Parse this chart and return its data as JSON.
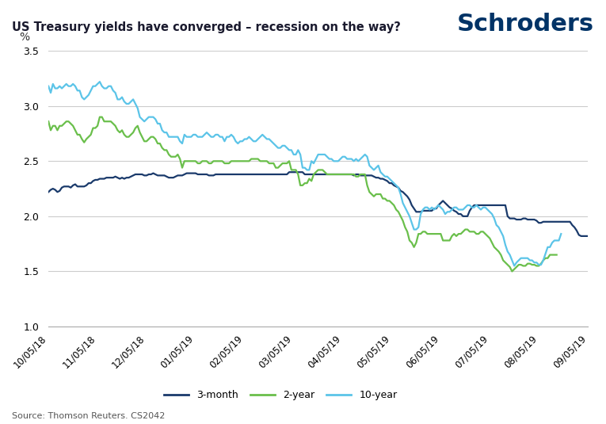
{
  "title": "US Treasury yields have converged – recession on the way?",
  "branding": "Schroders",
  "ylabel": "%",
  "source": "Source: Thomson Reuters. CS2042",
  "ylim": [
    1.0,
    3.5
  ],
  "yticks": [
    1.0,
    1.5,
    2.0,
    2.5,
    3.0,
    3.5
  ],
  "background_color": "#ffffff",
  "grid_color": "#cccccc",
  "series_3month_color": "#1a3a6b",
  "series_2year_color": "#6abf4b",
  "series_10year_color": "#5bc4e8",
  "linewidth": 1.6,
  "xtick_labels": [
    "10/05/18",
    "11/05/18",
    "12/05/18",
    "01/05/19",
    "02/05/19",
    "03/05/19",
    "04/05/19",
    "05/05/19",
    "06/05/19",
    "07/05/19",
    "08/05/19",
    "09/05/19"
  ],
  "series_3month": [
    2.22,
    2.24,
    2.25,
    2.24,
    2.22,
    2.23,
    2.26,
    2.27,
    2.27,
    2.27,
    2.26,
    2.28,
    2.29,
    2.27,
    2.27,
    2.27,
    2.27,
    2.28,
    2.3,
    2.3,
    2.32,
    2.33,
    2.33,
    2.34,
    2.34,
    2.34,
    2.35,
    2.35,
    2.35,
    2.35,
    2.36,
    2.35,
    2.34,
    2.35,
    2.34,
    2.35,
    2.35,
    2.36,
    2.37,
    2.38,
    2.38,
    2.38,
    2.38,
    2.37,
    2.37,
    2.38,
    2.38,
    2.39,
    2.38,
    2.37,
    2.37,
    2.37,
    2.37,
    2.36,
    2.35,
    2.35,
    2.35,
    2.36,
    2.37,
    2.37,
    2.37,
    2.38,
    2.39,
    2.39,
    2.39,
    2.39,
    2.39,
    2.38,
    2.38,
    2.38,
    2.38,
    2.38,
    2.37,
    2.37,
    2.37,
    2.38,
    2.38,
    2.38,
    2.38,
    2.38,
    2.38,
    2.38,
    2.38,
    2.38,
    2.38,
    2.38,
    2.38,
    2.38,
    2.38,
    2.38,
    2.38,
    2.38,
    2.38,
    2.38,
    2.38,
    2.38,
    2.38,
    2.38,
    2.38,
    2.38,
    2.38,
    2.38,
    2.38,
    2.38,
    2.38,
    2.38,
    2.38,
    2.38,
    2.4,
    2.4,
    2.4,
    2.4,
    2.4,
    2.4,
    2.4,
    2.38,
    2.38,
    2.38,
    2.38,
    2.38,
    2.38,
    2.38,
    2.38,
    2.38,
    2.38,
    2.38,
    2.38,
    2.38,
    2.38,
    2.38,
    2.38,
    2.38,
    2.38,
    2.38,
    2.38,
    2.38,
    2.38,
    2.37,
    2.38,
    2.38,
    2.37,
    2.37,
    2.37,
    2.37,
    2.37,
    2.37,
    2.36,
    2.35,
    2.35,
    2.34,
    2.34,
    2.33,
    2.32,
    2.3,
    2.3,
    2.28,
    2.27,
    2.26,
    2.23,
    2.22,
    2.2,
    2.18,
    2.15,
    2.1,
    2.07,
    2.04,
    2.04,
    2.04,
    2.05,
    2.05,
    2.05,
    2.05,
    2.05,
    2.07,
    2.07,
    2.1,
    2.12,
    2.14,
    2.12,
    2.1,
    2.08,
    2.07,
    2.05,
    2.04,
    2.02,
    2.02,
    2.0,
    2.0,
    2.0,
    2.05,
    2.08,
    2.1,
    2.1,
    2.1,
    2.1,
    2.1,
    2.1,
    2.1,
    2.1,
    2.1,
    2.1,
    2.1,
    2.1,
    2.1,
    2.1,
    2.1,
    2.0,
    1.98,
    1.98,
    1.98,
    1.97,
    1.97,
    1.97,
    1.98,
    1.98,
    1.97,
    1.97,
    1.97,
    1.97,
    1.96,
    1.94,
    1.94,
    1.95,
    1.95,
    1.95,
    1.95,
    1.95,
    1.95,
    1.95,
    1.95,
    1.95,
    1.95,
    1.95,
    1.95,
    1.95,
    1.92,
    1.9,
    1.87,
    1.83,
    1.82,
    1.82,
    1.82,
    1.82
  ],
  "series_2year": [
    2.86,
    2.78,
    2.82,
    2.82,
    2.78,
    2.82,
    2.82,
    2.84,
    2.86,
    2.86,
    2.84,
    2.82,
    2.78,
    2.74,
    2.74,
    2.7,
    2.67,
    2.7,
    2.72,
    2.74,
    2.8,
    2.8,
    2.82,
    2.9,
    2.9,
    2.86,
    2.86,
    2.86,
    2.86,
    2.84,
    2.82,
    2.78,
    2.76,
    2.78,
    2.74,
    2.72,
    2.72,
    2.74,
    2.76,
    2.8,
    2.82,
    2.76,
    2.72,
    2.68,
    2.68,
    2.7,
    2.72,
    2.72,
    2.7,
    2.66,
    2.66,
    2.62,
    2.6,
    2.6,
    2.56,
    2.54,
    2.54,
    2.54,
    2.56,
    2.52,
    2.44,
    2.5,
    2.5,
    2.5,
    2.5,
    2.5,
    2.5,
    2.48,
    2.48,
    2.5,
    2.5,
    2.5,
    2.48,
    2.48,
    2.5,
    2.5,
    2.5,
    2.5,
    2.5,
    2.48,
    2.48,
    2.48,
    2.5,
    2.5,
    2.5,
    2.5,
    2.5,
    2.5,
    2.5,
    2.5,
    2.5,
    2.52,
    2.52,
    2.52,
    2.52,
    2.5,
    2.5,
    2.5,
    2.5,
    2.48,
    2.48,
    2.48,
    2.44,
    2.44,
    2.46,
    2.48,
    2.48,
    2.48,
    2.5,
    2.42,
    2.42,
    2.42,
    2.38,
    2.28,
    2.28,
    2.3,
    2.3,
    2.34,
    2.32,
    2.38,
    2.4,
    2.42,
    2.42,
    2.42,
    2.4,
    2.38,
    2.38,
    2.38,
    2.38,
    2.38,
    2.38,
    2.38,
    2.38,
    2.38,
    2.38,
    2.38,
    2.38,
    2.38,
    2.36,
    2.36,
    2.38,
    2.38,
    2.38,
    2.28,
    2.22,
    2.2,
    2.18,
    2.2,
    2.2,
    2.2,
    2.16,
    2.16,
    2.14,
    2.14,
    2.12,
    2.1,
    2.06,
    2.04,
    2.0,
    1.96,
    1.9,
    1.86,
    1.78,
    1.76,
    1.72,
    1.76,
    1.84,
    1.84,
    1.86,
    1.86,
    1.84,
    1.84,
    1.84,
    1.84,
    1.84,
    1.84,
    1.84,
    1.78,
    1.78,
    1.78,
    1.78,
    1.82,
    1.84,
    1.82,
    1.84,
    1.84,
    1.86,
    1.88,
    1.88,
    1.86,
    1.86,
    1.86,
    1.84,
    1.84,
    1.86,
    1.86,
    1.84,
    1.82,
    1.8,
    1.76,
    1.72,
    1.7,
    1.68,
    1.65,
    1.6,
    1.58,
    1.56,
    1.54,
    1.5,
    1.52,
    1.54,
    1.56,
    1.56,
    1.55,
    1.55,
    1.57,
    1.57,
    1.56,
    1.56,
    1.55,
    1.55,
    1.57,
    1.6,
    1.62,
    1.62,
    1.65,
    1.65,
    1.65,
    1.65
  ],
  "series_10year": [
    3.18,
    3.12,
    3.2,
    3.16,
    3.16,
    3.18,
    3.16,
    3.18,
    3.2,
    3.18,
    3.18,
    3.2,
    3.18,
    3.14,
    3.14,
    3.08,
    3.06,
    3.08,
    3.1,
    3.14,
    3.18,
    3.18,
    3.2,
    3.22,
    3.18,
    3.16,
    3.16,
    3.18,
    3.18,
    3.14,
    3.12,
    3.06,
    3.06,
    3.08,
    3.04,
    3.02,
    3.02,
    3.04,
    3.06,
    3.02,
    2.98,
    2.9,
    2.88,
    2.86,
    2.88,
    2.9,
    2.9,
    2.9,
    2.88,
    2.84,
    2.84,
    2.78,
    2.76,
    2.76,
    2.72,
    2.72,
    2.72,
    2.72,
    2.72,
    2.68,
    2.66,
    2.74,
    2.72,
    2.72,
    2.72,
    2.74,
    2.74,
    2.72,
    2.72,
    2.72,
    2.74,
    2.76,
    2.74,
    2.72,
    2.72,
    2.74,
    2.74,
    2.72,
    2.72,
    2.68,
    2.72,
    2.72,
    2.74,
    2.72,
    2.68,
    2.66,
    2.68,
    2.68,
    2.7,
    2.7,
    2.72,
    2.7,
    2.68,
    2.68,
    2.7,
    2.72,
    2.74,
    2.72,
    2.7,
    2.7,
    2.68,
    2.66,
    2.64,
    2.62,
    2.62,
    2.64,
    2.64,
    2.62,
    2.6,
    2.6,
    2.56,
    2.56,
    2.6,
    2.56,
    2.44,
    2.44,
    2.42,
    2.42,
    2.5,
    2.48,
    2.52,
    2.56,
    2.56,
    2.56,
    2.56,
    2.54,
    2.52,
    2.52,
    2.5,
    2.5,
    2.5,
    2.52,
    2.54,
    2.54,
    2.52,
    2.52,
    2.52,
    2.5,
    2.52,
    2.5,
    2.52,
    2.54,
    2.56,
    2.54,
    2.46,
    2.44,
    2.42,
    2.44,
    2.46,
    2.4,
    2.38,
    2.36,
    2.36,
    2.34,
    2.32,
    2.3,
    2.28,
    2.26,
    2.2,
    2.12,
    2.08,
    2.04,
    2.0,
    1.94,
    1.88,
    1.88,
    1.9,
    2.02,
    2.06,
    2.08,
    2.08,
    2.06,
    2.08,
    2.06,
    2.08,
    2.1,
    2.08,
    2.06,
    2.02,
    2.04,
    2.04,
    2.06,
    2.08,
    2.08,
    2.06,
    2.06,
    2.06,
    2.08,
    2.1,
    2.1,
    2.08,
    2.08,
    2.1,
    2.08,
    2.06,
    2.08,
    2.08,
    2.06,
    2.04,
    2.02,
    1.98,
    1.92,
    1.9,
    1.86,
    1.82,
    1.74,
    1.68,
    1.65,
    1.6,
    1.55,
    1.58,
    1.6,
    1.62,
    1.62,
    1.62,
    1.62,
    1.6,
    1.6,
    1.58,
    1.58,
    1.56,
    1.56,
    1.6,
    1.66,
    1.72,
    1.72,
    1.76,
    1.78,
    1.78,
    1.78,
    1.84
  ]
}
